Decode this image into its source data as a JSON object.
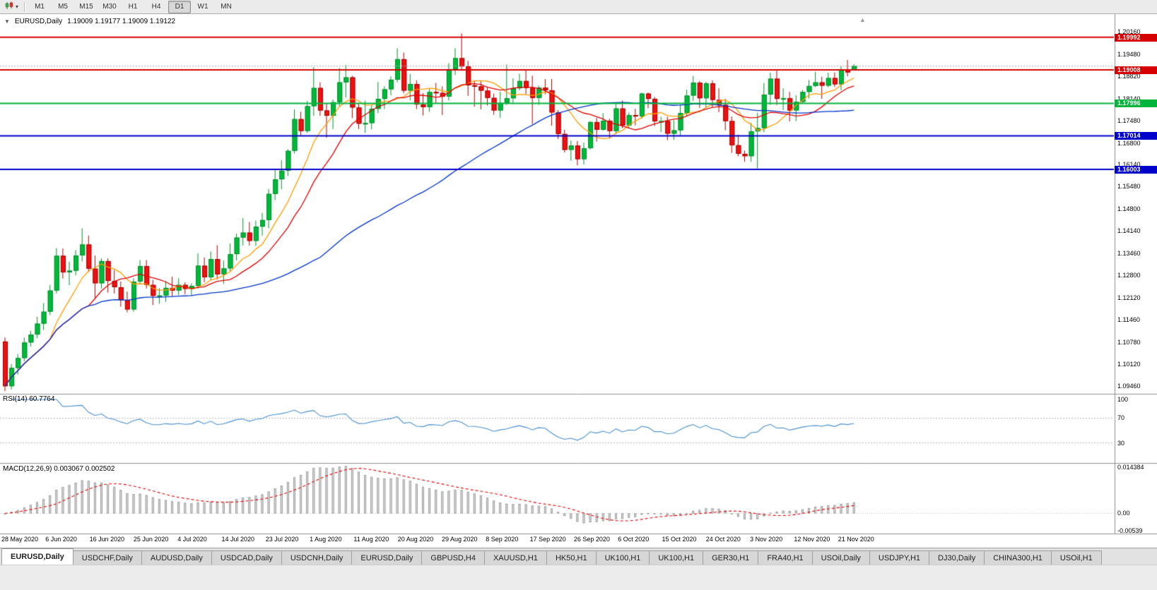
{
  "toolbar": {
    "timeframes": [
      "M1",
      "M5",
      "M15",
      "M30",
      "H1",
      "H4",
      "D1",
      "W1",
      "MN"
    ],
    "active_timeframe": "D1"
  },
  "chart": {
    "collapse_icon": "▼",
    "symbol_title": "EURUSD,Daily",
    "ohlc_text": "1.19009 1.19177 1.19009 1.19122",
    "shift_marker": "▲",
    "price_axis_labels": [
      "1.20160",
      "1.19480",
      "1.18820",
      "1.18140",
      "1.17480",
      "1.16800",
      "1.16140",
      "1.15480",
      "1.14800",
      "1.14140",
      "1.13460",
      "1.12800",
      "1.12120",
      "1.11460",
      "1.10780",
      "1.10120",
      "1.09460"
    ],
    "levels": [
      {
        "label": "1.19992",
        "value": 1.19992,
        "color": "#d60000"
      },
      {
        "label": "1.19008",
        "value": 1.19008,
        "color": "#d60000"
      },
      {
        "label": "1.17996",
        "value": 1.17996,
        "color": "#00b43c"
      },
      {
        "label": "1.17014",
        "value": 1.17014,
        "color": "#0000cc"
      },
      {
        "label": "1.16003",
        "value": 1.16003,
        "color": "#0000cc"
      }
    ],
    "bid_price": 1.19122
  },
  "rsi_panel": {
    "label": "RSI(14) 60.7764",
    "period": 14,
    "last_value": 60.7764,
    "upper_level": 70,
    "lower_level": 30,
    "line_color": "#4a90d0",
    "axis_labels": [
      {
        "text": "100",
        "value": 100
      },
      {
        "text": "70",
        "value": 70
      },
      {
        "text": "30",
        "value": 30
      }
    ]
  },
  "macd_panel": {
    "label": "MACD(12,26,9) 0.003067 0.002502",
    "fast": 12,
    "slow": 26,
    "signal": 9,
    "main_value": 0.003067,
    "signal_value": 0.002502,
    "scale_max": 0.014384,
    "scale_min": -0.00539,
    "histogram_color": "#dcdcdc",
    "signal_color": "#e00000",
    "axis_labels": [
      {
        "text": "0.014384",
        "value": 0.014384
      },
      {
        "text": "0.00",
        "value": 0
      },
      {
        "text": "-0.00539",
        "value": -0.00539
      }
    ]
  },
  "date_axis_labels": [
    "28 May 2020",
    "6 Jun 2020",
    "16 Jun 2020",
    "25 Jun 2020",
    "4 Jul 2020",
    "14 Jul 2020",
    "23 Jul 2020",
    "1 Aug 2020",
    "11 Aug 2020",
    "20 Aug 2020",
    "29 Aug 2020",
    "8 Sep 2020",
    "17 Sep 2020",
    "26 Sep 2020",
    "6 Oct 2020",
    "15 Oct 2020",
    "24 Oct 2020",
    "3 Nov 2020",
    "12 Nov 2020",
    "21 Nov 2020"
  ],
  "tabs": {
    "active_index": 0,
    "items": [
      "EURUSD,Daily",
      "USDCHF,Daily",
      "AUDUSD,Daily",
      "USDCAD,Daily",
      "USDCNH,Daily",
      "EURUSD,Daily",
      "GBPUSD,H4",
      "XAUUSD,H1",
      "HK50,H1",
      "UK100,H1",
      "UK100,H1",
      "GER30,H1",
      "FRA40,H1",
      "USOil,Daily",
      "USDJPY,H1",
      "DJ30,Daily",
      "CHINA300,H1",
      "USOil,H1"
    ]
  },
  "chart_data": {
    "type": "candlestick",
    "symbol": "EURUSD",
    "period": "Daily",
    "visible_price_range": [
      1.0922,
      1.2067
    ],
    "bull_color": "#00b93a",
    "bear_color": "#ee1111",
    "moving_averages": [
      {
        "period": 8,
        "color": "#ff9c00"
      },
      {
        "period": 14,
        "color": "#e00000"
      },
      {
        "period": 50,
        "color": "#0033cc"
      }
    ],
    "horizontal_levels": [
      1.19992,
      1.19008,
      1.17996,
      1.17014,
      1.16003
    ],
    "candles_ohlc": [
      [
        1.108,
        1.1092,
        1.093,
        1.0945
      ],
      [
        1.0945,
        1.1012,
        1.0935,
        1.1
      ],
      [
        1.1,
        1.1042,
        1.098,
        1.103
      ],
      [
        1.103,
        1.1092,
        1.102,
        1.1077
      ],
      [
        1.1077,
        1.1112,
        1.1065,
        1.1101
      ],
      [
        1.1101,
        1.1155,
        1.109,
        1.1134
      ],
      [
        1.1134,
        1.1196,
        1.1115,
        1.117
      ],
      [
        1.117,
        1.1251,
        1.116,
        1.1234
      ],
      [
        1.1234,
        1.1362,
        1.1225,
        1.1339
      ],
      [
        1.1339,
        1.1361,
        1.127,
        1.1289
      ],
      [
        1.1289,
        1.1321,
        1.125,
        1.1294
      ],
      [
        1.1294,
        1.1356,
        1.128,
        1.134
      ],
      [
        1.134,
        1.1422,
        1.1322,
        1.1373
      ],
      [
        1.1373,
        1.14,
        1.129,
        1.13
      ],
      [
        1.13,
        1.134,
        1.1212,
        1.1256
      ],
      [
        1.1256,
        1.1331,
        1.124,
        1.1323
      ],
      [
        1.1323,
        1.1331,
        1.1228,
        1.1263
      ],
      [
        1.1263,
        1.1296,
        1.1225,
        1.1244
      ],
      [
        1.1244,
        1.1261,
        1.1185,
        1.1205
      ],
      [
        1.1205,
        1.1231,
        1.1168,
        1.1177
      ],
      [
        1.1177,
        1.1271,
        1.117,
        1.1261
      ],
      [
        1.1261,
        1.1326,
        1.1255,
        1.1308
      ],
      [
        1.1308,
        1.1326,
        1.124,
        1.1251
      ],
      [
        1.1251,
        1.1266,
        1.119,
        1.1218
      ],
      [
        1.1218,
        1.1241,
        1.1194,
        1.1219
      ],
      [
        1.1219,
        1.1263,
        1.12,
        1.1242
      ],
      [
        1.1242,
        1.1276,
        1.1215,
        1.1234
      ],
      [
        1.1234,
        1.1271,
        1.122,
        1.1251
      ],
      [
        1.1251,
        1.1259,
        1.1223,
        1.1239
      ],
      [
        1.1239,
        1.1256,
        1.1218,
        1.1248
      ],
      [
        1.1248,
        1.1346,
        1.124,
        1.1309
      ],
      [
        1.1309,
        1.1334,
        1.1259,
        1.1274
      ],
      [
        1.1274,
        1.1352,
        1.1266,
        1.1329
      ],
      [
        1.1329,
        1.1371,
        1.1268,
        1.1283
      ],
      [
        1.1283,
        1.1325,
        1.1254,
        1.1301
      ],
      [
        1.1301,
        1.1376,
        1.1292,
        1.1344
      ],
      [
        1.1344,
        1.1406,
        1.1325,
        1.1394
      ],
      [
        1.1394,
        1.1453,
        1.137,
        1.1409
      ],
      [
        1.1409,
        1.1441,
        1.137,
        1.1384
      ],
      [
        1.1384,
        1.1445,
        1.1369,
        1.1427
      ],
      [
        1.1427,
        1.1469,
        1.14,
        1.1447
      ],
      [
        1.1447,
        1.1541,
        1.1422,
        1.1526
      ],
      [
        1.1526,
        1.1602,
        1.1507,
        1.157
      ],
      [
        1.157,
        1.1628,
        1.154,
        1.1596
      ],
      [
        1.1596,
        1.1661,
        1.158,
        1.1656
      ],
      [
        1.1656,
        1.1781,
        1.1648,
        1.1752
      ],
      [
        1.1752,
        1.1774,
        1.17,
        1.1716
      ],
      [
        1.1716,
        1.1807,
        1.171,
        1.1791
      ],
      [
        1.1791,
        1.1909,
        1.1762,
        1.1846
      ],
      [
        1.1846,
        1.1863,
        1.1762,
        1.1778
      ],
      [
        1.1778,
        1.1798,
        1.1696,
        1.1762
      ],
      [
        1.1762,
        1.1811,
        1.1722,
        1.1803
      ],
      [
        1.1803,
        1.1906,
        1.179,
        1.1863
      ],
      [
        1.1863,
        1.1916,
        1.1817,
        1.1878
      ],
      [
        1.1878,
        1.1883,
        1.1755,
        1.1787
      ],
      [
        1.1787,
        1.1801,
        1.1722,
        1.1738
      ],
      [
        1.1738,
        1.1808,
        1.171,
        1.174
      ],
      [
        1.174,
        1.1793,
        1.1721,
        1.1783
      ],
      [
        1.1783,
        1.1864,
        1.177,
        1.1813
      ],
      [
        1.1813,
        1.1851,
        1.1782,
        1.1842
      ],
      [
        1.1842,
        1.1881,
        1.1824,
        1.1871
      ],
      [
        1.1871,
        1.1966,
        1.1863,
        1.1933
      ],
      [
        1.1933,
        1.1953,
        1.183,
        1.1838
      ],
      [
        1.1838,
        1.1888,
        1.1809,
        1.1858
      ],
      [
        1.1858,
        1.1869,
        1.1782,
        1.1796
      ],
      [
        1.1796,
        1.1831,
        1.1763,
        1.1788
      ],
      [
        1.1788,
        1.1844,
        1.1774,
        1.1834
      ],
      [
        1.1834,
        1.1861,
        1.18,
        1.1831
      ],
      [
        1.1831,
        1.1851,
        1.1764,
        1.182
      ],
      [
        1.182,
        1.1921,
        1.1808,
        1.1903
      ],
      [
        1.1903,
        1.1966,
        1.1885,
        1.1936
      ],
      [
        1.1936,
        1.2011,
        1.1898,
        1.1911
      ],
      [
        1.1911,
        1.1928,
        1.1822,
        1.1854
      ],
      [
        1.1854,
        1.1869,
        1.1789,
        1.1851
      ],
      [
        1.1851,
        1.1866,
        1.1781,
        1.1838
      ],
      [
        1.1838,
        1.185,
        1.1793,
        1.1816
      ],
      [
        1.1816,
        1.1829,
        1.1765,
        1.1778
      ],
      [
        1.1778,
        1.1835,
        1.1756,
        1.1801
      ],
      [
        1.1801,
        1.1917,
        1.1795,
        1.1815
      ],
      [
        1.1815,
        1.1875,
        1.18,
        1.1845
      ],
      [
        1.1845,
        1.1889,
        1.1839,
        1.1867
      ],
      [
        1.1867,
        1.1902,
        1.1827,
        1.1846
      ],
      [
        1.1846,
        1.1883,
        1.1737,
        1.1816
      ],
      [
        1.1816,
        1.1853,
        1.1795,
        1.1847
      ],
      [
        1.1847,
        1.1873,
        1.1827,
        1.1839
      ],
      [
        1.1839,
        1.1873,
        1.1732,
        1.1772
      ],
      [
        1.1772,
        1.1779,
        1.1692,
        1.1707
      ],
      [
        1.1707,
        1.172,
        1.1651,
        1.1659
      ],
      [
        1.1659,
        1.1687,
        1.1626,
        1.1672
      ],
      [
        1.1672,
        1.1686,
        1.1612,
        1.1631
      ],
      [
        1.1631,
        1.1681,
        1.1615,
        1.1664
      ],
      [
        1.1664,
        1.1746,
        1.166,
        1.1743
      ],
      [
        1.1743,
        1.1756,
        1.1684,
        1.172
      ],
      [
        1.172,
        1.177,
        1.1717,
        1.1747
      ],
      [
        1.1747,
        1.1753,
        1.1695,
        1.1716
      ],
      [
        1.1716,
        1.1799,
        1.1707,
        1.1784
      ],
      [
        1.1784,
        1.1808,
        1.1724,
        1.1733
      ],
      [
        1.1733,
        1.1772,
        1.1725,
        1.1764
      ],
      [
        1.1764,
        1.1783,
        1.1733,
        1.176
      ],
      [
        1.176,
        1.1832,
        1.1753,
        1.1829
      ],
      [
        1.1829,
        1.1832,
        1.1785,
        1.1813
      ],
      [
        1.1813,
        1.1819,
        1.1731,
        1.1745
      ],
      [
        1.1745,
        1.1759,
        1.1713,
        1.1746
      ],
      [
        1.1746,
        1.1759,
        1.1688,
        1.1708
      ],
      [
        1.1708,
        1.1748,
        1.1689,
        1.1718
      ],
      [
        1.1718,
        1.1795,
        1.1703,
        1.177
      ],
      [
        1.177,
        1.1841,
        1.1762,
        1.1823
      ],
      [
        1.1823,
        1.1882,
        1.1807,
        1.1862
      ],
      [
        1.1862,
        1.1867,
        1.1786,
        1.1815
      ],
      [
        1.1815,
        1.1865,
        1.1785,
        1.186
      ],
      [
        1.186,
        1.1869,
        1.1787,
        1.181
      ],
      [
        1.181,
        1.1845,
        1.1773,
        1.1795
      ],
      [
        1.1795,
        1.1813,
        1.1718,
        1.1746
      ],
      [
        1.1746,
        1.176,
        1.165,
        1.1673
      ],
      [
        1.1673,
        1.1705,
        1.164,
        1.1647
      ],
      [
        1.1647,
        1.1657,
        1.1623,
        1.164
      ],
      [
        1.164,
        1.1741,
        1.1623,
        1.1715
      ],
      [
        1.1715,
        1.1771,
        1.1603,
        1.1725
      ],
      [
        1.1725,
        1.1861,
        1.1712,
        1.1826
      ],
      [
        1.1826,
        1.1892,
        1.1795,
        1.1874
      ],
      [
        1.1874,
        1.1898,
        1.1795,
        1.1813
      ],
      [
        1.1813,
        1.1845,
        1.1779,
        1.1815
      ],
      [
        1.1815,
        1.1834,
        1.1745,
        1.1778
      ],
      [
        1.1778,
        1.1824,
        1.1746,
        1.1804
      ],
      [
        1.1804,
        1.184,
        1.1799,
        1.1834
      ],
      [
        1.1834,
        1.187,
        1.1814,
        1.1852
      ],
      [
        1.1852,
        1.1895,
        1.1849,
        1.1863
      ],
      [
        1.1863,
        1.188,
        1.1813,
        1.1853
      ],
      [
        1.1853,
        1.1892,
        1.1848,
        1.1876
      ],
      [
        1.1876,
        1.1893,
        1.1849,
        1.1857
      ],
      [
        1.1857,
        1.1911,
        1.1839,
        1.1901
      ],
      [
        1.1901,
        1.1931,
        1.1881,
        1.1893
      ],
      [
        1.19009,
        1.19177,
        1.19009,
        1.19122
      ]
    ]
  }
}
